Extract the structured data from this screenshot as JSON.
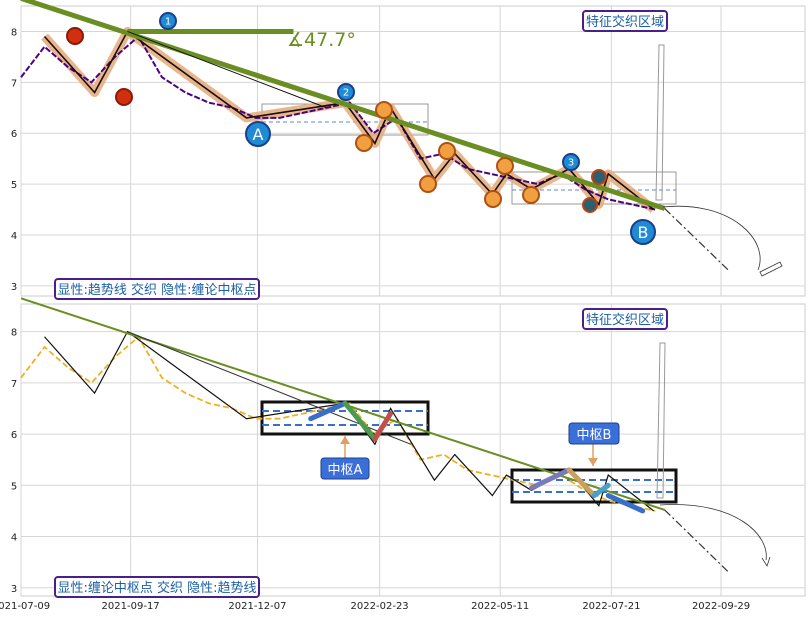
{
  "chart_data": [
    {
      "type": "line",
      "panel": "top",
      "ylim": [
        2.8,
        8.5
      ],
      "yticks": [
        3,
        4,
        5,
        6,
        7,
        8
      ],
      "grid": true,
      "box_label": "显性:趋势线 交织 隐性:缠论中枢点",
      "zone_label": "特征交织区域",
      "angle_label": "∡47.7°",
      "trend_labels": {
        "a": "A",
        "b": "B",
        "one": "1",
        "two": "2",
        "three": "3"
      },
      "x_dates": [
        "2021-07-09",
        "2021-07-24",
        "2021-08-08",
        "2021-08-23",
        "2021-09-07",
        "2021-09-22",
        "2021-10-07",
        "2021-10-22",
        "2021-11-06",
        "2021-11-21",
        "2021-12-06",
        "2021-12-21",
        "2022-01-05",
        "2022-01-20",
        "2022-02-04",
        "2022-02-19",
        "2022-03-06",
        "2022-03-21",
        "2022-04-05",
        "2022-04-20",
        "2022-05-05",
        "2022-05-20",
        "2022-06-04",
        "2022-06-19",
        "2022-07-04",
        "2022-07-19",
        "2022-08-03",
        "2022-08-18"
      ],
      "price": [
        7.1,
        7.7,
        7.3,
        7.0,
        7.5,
        7.9,
        7.1,
        6.8,
        6.6,
        6.5,
        6.3,
        6.3,
        6.4,
        6.5,
        6.6,
        6.0,
        6.3,
        5.5,
        5.6,
        5.3,
        5.2,
        5.1,
        5.0,
        5.2,
        4.9,
        4.7,
        4.6,
        4.5
      ],
      "zigzag_points": [
        [
          "2021-07-24",
          7.9
        ],
        [
          "2021-08-25",
          6.8
        ],
        [
          "2021-09-15",
          8.0
        ],
        [
          "2021-11-30",
          6.3
        ],
        [
          "2022-02-01",
          6.6
        ],
        [
          "2022-02-20",
          5.8
        ],
        [
          "2022-03-02",
          6.5
        ],
        [
          "2022-03-30",
          5.1
        ],
        [
          "2022-04-12",
          5.6
        ],
        [
          "2022-05-06",
          4.8
        ],
        [
          "2022-05-15",
          5.2
        ],
        [
          "2022-05-31",
          4.9
        ],
        [
          "2022-06-24",
          5.3
        ],
        [
          "2022-07-13",
          4.6
        ],
        [
          "2022-07-19",
          5.2
        ],
        [
          "2022-08-17",
          4.5
        ]
      ],
      "trendline": [
        [
          "2021-07-09",
          8.65
        ],
        [
          "2022-08-24",
          4.52
        ]
      ],
      "projection": [
        [
          "2022-08-24",
          4.52
        ],
        [
          "2022-10-04",
          3.3
        ]
      ]
    },
    {
      "type": "line",
      "panel": "bottom",
      "ylim": [
        2.8,
        8.5
      ],
      "yticks": [
        3,
        4,
        5,
        6,
        7,
        8
      ],
      "grid": true,
      "box_label": "显性:缠论中枢点 交织 隐性:趋势线",
      "zone_label": "特征交织区域",
      "pivot_labels": [
        "中枢A",
        "中枢B"
      ],
      "x_ticks": [
        "2021-07-09",
        "2021-09-17",
        "2021-12-07",
        "2022-02-23",
        "2022-05-11",
        "2022-07-21",
        "2022-09-29"
      ],
      "pivot_a": {
        "x": [
          "2021-11-25",
          "2022-03-18"
        ],
        "y": [
          5.95,
          6.6
        ]
      },
      "pivot_b": {
        "x": [
          "2022-05-11",
          "2022-08-20"
        ],
        "y": [
          4.6,
          5.3
        ]
      }
    }
  ],
  "colors": {
    "trend": "#6b8e23",
    "price_top": "#4b0082",
    "price_bottom": "#f0b020",
    "zigzag": "#e8a878",
    "label_border": "#4b1f8a",
    "pivot_box": "#111111"
  }
}
